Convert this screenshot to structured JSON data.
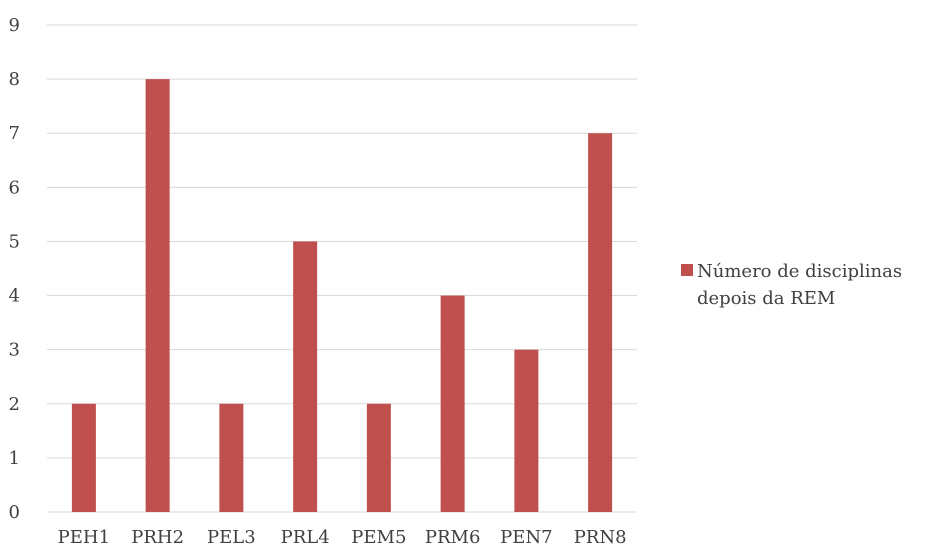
{
  "chart_data": {
    "type": "bar",
    "title": "",
    "xlabel": "",
    "ylabel": "",
    "categories": [
      "PEH1",
      "PRH2",
      "PEL3",
      "PRL4",
      "PEM5",
      "PRM6",
      "PEN7",
      "PRN8"
    ],
    "series": [
      {
        "name_lines": [
          "Número de disciplinas",
          "depois da REM"
        ],
        "color": "#C0504D",
        "values": [
          2,
          8,
          2,
          5,
          2,
          4,
          3,
          7
        ]
      }
    ],
    "ylim": [
      0,
      9
    ],
    "yticks": [
      0,
      1,
      2,
      3,
      4,
      5,
      6,
      7,
      8,
      9
    ],
    "grid": true,
    "gridColor": "#D9D9D9",
    "legend": "right"
  }
}
